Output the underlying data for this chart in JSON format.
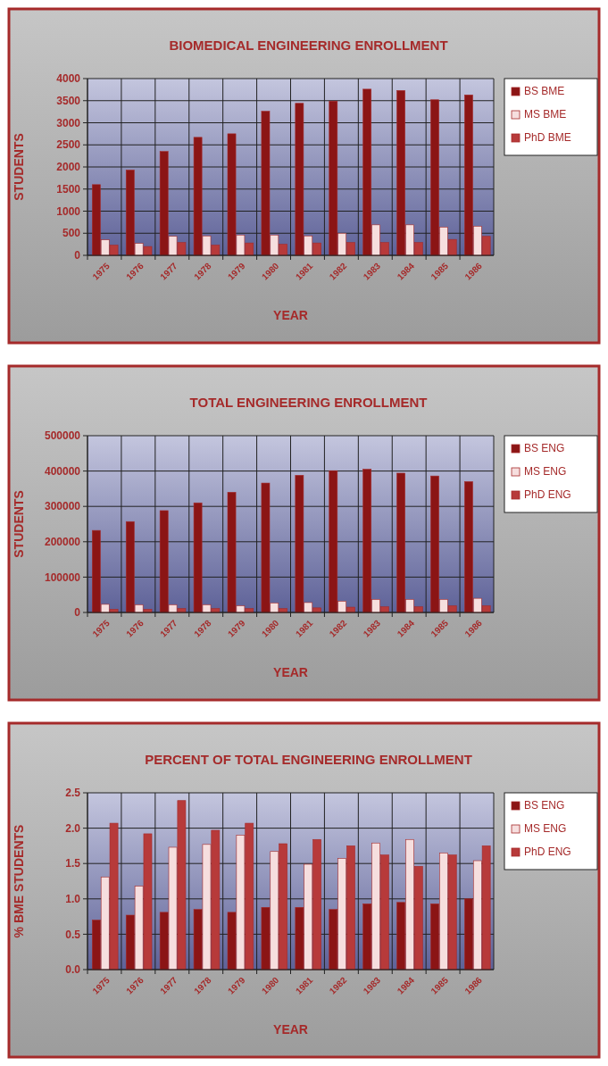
{
  "chart_data": [
    {
      "type": "bar",
      "title": "BIOMEDICAL ENGINEERING ENROLLMENT",
      "xlabel": "YEAR",
      "ylabel": "STUDENTS",
      "categories": [
        "1975",
        "1976",
        "1977",
        "1978",
        "1979",
        "1980",
        "1981",
        "1982",
        "1983",
        "1984",
        "1985",
        "1986"
      ],
      "series": [
        {
          "name": "BS BME",
          "color": "#8b1515",
          "values": [
            1600,
            1930,
            2350,
            2670,
            2750,
            3260,
            3440,
            3490,
            3760,
            3730,
            3520,
            3630
          ]
        },
        {
          "name": "MS BME",
          "color": "#f6dede",
          "values": [
            350,
            270,
            430,
            440,
            460,
            460,
            440,
            500,
            690,
            690,
            640,
            660
          ]
        },
        {
          "name": "PhD BME",
          "color": "#b73a3a",
          "values": [
            230,
            200,
            290,
            230,
            280,
            250,
            280,
            290,
            290,
            290,
            360,
            430
          ]
        }
      ],
      "ylim": [
        0,
        4000
      ],
      "yticks": [
        0,
        500,
        1000,
        1500,
        2000,
        2500,
        3000,
        3500,
        4000
      ],
      "grid": true,
      "legend": "right"
    },
    {
      "type": "bar",
      "title": "TOTAL ENGINEERING ENROLLMENT",
      "xlabel": "YEAR",
      "ylabel": "STUDENTS",
      "categories": [
        "1975",
        "1976",
        "1977",
        "1978",
        "1979",
        "1980",
        "1981",
        "1982",
        "1983",
        "1984",
        "1985",
        "1986"
      ],
      "series": [
        {
          "name": "BS ENG",
          "color": "#8b1515",
          "values": [
            232000,
            257000,
            288000,
            310000,
            340000,
            366000,
            388000,
            401000,
            405000,
            394000,
            386000,
            370000
          ]
        },
        {
          "name": "MS ENG",
          "color": "#f6dede",
          "values": [
            23000,
            22000,
            22000,
            22000,
            19000,
            27000,
            28000,
            32000,
            37000,
            37000,
            37000,
            40000
          ]
        },
        {
          "name": "PhD ENG",
          "color": "#b73a3a",
          "values": [
            9000,
            9000,
            11000,
            11000,
            11000,
            11000,
            13000,
            15000,
            16000,
            16000,
            19000,
            19000
          ]
        }
      ],
      "ylim": [
        0,
        500000
      ],
      "yticks": [
        0,
        100000,
        200000,
        300000,
        400000,
        500000
      ],
      "grid": true,
      "legend": "right"
    },
    {
      "type": "bar",
      "title": "PERCENT OF TOTAL ENGINEERING ENROLLMENT",
      "xlabel": "YEAR",
      "ylabel": "% BME STUDENTS",
      "categories": [
        "1975",
        "1976",
        "1977",
        "1978",
        "1979",
        "1980",
        "1981",
        "1982",
        "1983",
        "1984",
        "1985",
        "1986"
      ],
      "series": [
        {
          "name": "BS ENG",
          "color": "#8b1515",
          "values": [
            0.7,
            0.77,
            0.81,
            0.85,
            0.81,
            0.88,
            0.88,
            0.85,
            0.93,
            0.95,
            0.93,
            1.0
          ]
        },
        {
          "name": "MS ENG",
          "color": "#f6dede",
          "values": [
            1.31,
            1.18,
            1.73,
            1.77,
            1.9,
            1.67,
            1.49,
            1.57,
            1.79,
            1.84,
            1.65,
            1.54
          ]
        },
        {
          "name": "PhD ENG",
          "color": "#b73a3a",
          "values": [
            2.07,
            1.92,
            2.39,
            1.97,
            2.07,
            1.78,
            1.84,
            1.75,
            1.62,
            1.46,
            1.62,
            1.75
          ]
        }
      ],
      "ylim": [
        0,
        2.5
      ],
      "yticks": [
        {
          "value": 0,
          "label": "0.0"
        },
        {
          "value": 0.5,
          "label": "0.5"
        },
        {
          "value": 1,
          "label": "1.0"
        },
        {
          "value": 1.5,
          "label": "1.5"
        },
        {
          "value": 2,
          "label": "2.0"
        },
        {
          "value": 2.5,
          "label": "2.5"
        }
      ],
      "grid": true,
      "legend": "right"
    }
  ]
}
